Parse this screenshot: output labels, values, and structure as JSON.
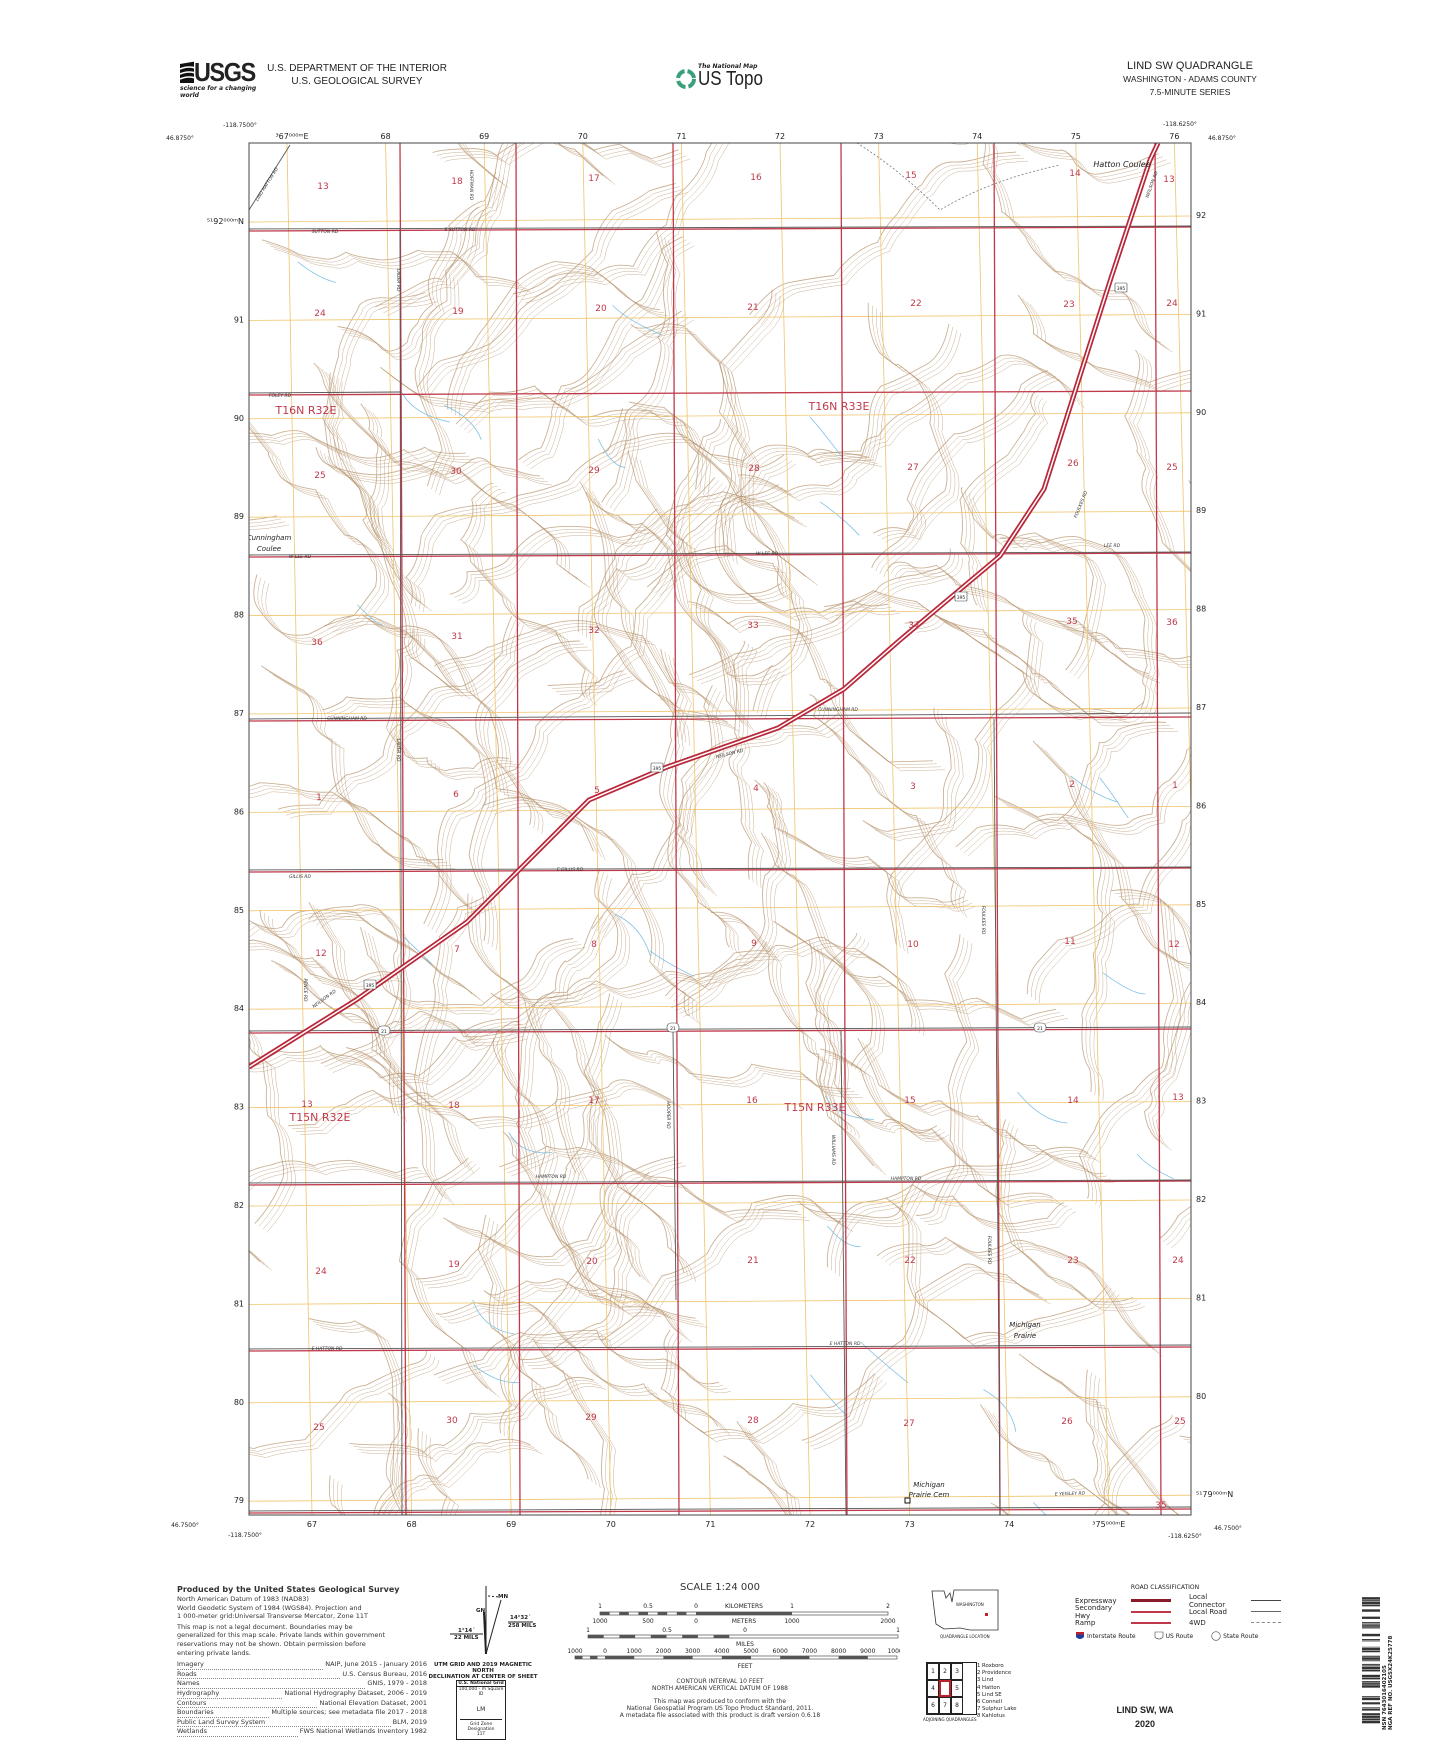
{
  "header": {
    "agency_logo": "USGS",
    "agency_tagline": "science for a changing world",
    "department": "U.S. DEPARTMENT OF THE INTERIOR",
    "survey": "U.S. GEOLOGICAL SURVEY",
    "program_small": "The National Map",
    "program": "US Topo",
    "quad_title": "LIND SW QUADRANGLE",
    "state_county": "WASHINGTON - ADAMS COUNTY",
    "series": "7.5-MINUTE SERIES"
  },
  "map": {
    "corners": {
      "nw_lon": "-118.7500°",
      "nw_lat": "46.8750°",
      "ne_lon": "-118.6250°",
      "ne_lat": "46.8750°",
      "sw_lon": "-118.7500°",
      "sw_lat": "46.7500°",
      "se_lon": "-118.6250°",
      "se_lat": "46.7500°"
    },
    "eastings_top": [
      "³67⁰⁰⁰ᵐE",
      "68",
      "69",
      "70",
      "71",
      "72",
      "73",
      "74",
      "75",
      "76"
    ],
    "eastings_bottom": [
      "67",
      "68",
      "69",
      "70",
      "71",
      "72",
      "73",
      "74",
      "³75⁰⁰⁰ᵐE"
    ],
    "northings_left": [
      "⁵¹92⁰⁰⁰ᵐN",
      "91",
      "90",
      "89",
      "88",
      "87",
      "86",
      "85",
      "84",
      "83",
      "82",
      "81",
      "80",
      "79"
    ],
    "northings_right": [
      "92",
      "91",
      "90",
      "89",
      "88",
      "87",
      "86",
      "85",
      "84",
      "83",
      "82",
      "81",
      "80",
      "⁵¹79⁰⁰⁰ᵐN"
    ],
    "townships": [
      "T16N R32E",
      "T16N R33E",
      "T15N R32E",
      "T15N R33E"
    ],
    "sections": [
      "13",
      "18",
      "17",
      "16",
      "15",
      "14",
      "13",
      "24",
      "19",
      "20",
      "21",
      "22",
      "23",
      "24",
      "25",
      "30",
      "29",
      "28",
      "27",
      "26",
      "25",
      "36",
      "31",
      "32",
      "33",
      "34",
      "35",
      "36",
      "1",
      "6",
      "5",
      "4",
      "3",
      "2",
      "1",
      "12",
      "7",
      "8",
      "9",
      "10",
      "11",
      "12",
      "13",
      "18",
      "17",
      "16",
      "15",
      "14",
      "13",
      "24",
      "19",
      "20",
      "21",
      "22",
      "23",
      "24",
      "25",
      "30",
      "29",
      "28",
      "27",
      "26",
      "25",
      "35"
    ],
    "places": [
      "Hatton Coulee",
      "Cunningham",
      "Coulee",
      "Michigan",
      "Prairie",
      "Michigan",
      "Prairie Cem"
    ],
    "roads": [
      "SUTTON RD",
      "E SUTTON RD",
      "FOLEY RD",
      "W LEE RD",
      "W LEE RD",
      "LEE RD",
      "CUNNINGHAM RD",
      "CUNNINGHAM RD",
      "NEILSON RD",
      "NEILSON RD",
      "NEILSON RD",
      "GILLIS RD",
      "E GILLIS RD",
      "HAMPTON RD",
      "HAMPTON RD",
      "E HATTON RD",
      "E HATTON RD",
      "E YEISLEY RD",
      "LAUER RD",
      "LAUER RD",
      "HOFFMAN RD",
      "FOULKES RD",
      "FOULKES RD",
      "FOULKES RD",
      "WILLIAMS RD",
      "HOOPER RD",
      "LIND HATTON RD",
      "PENCE RD"
    ],
    "route_shields": [
      "395",
      "395",
      "395",
      "395",
      "21",
      "21",
      "21"
    ],
    "colors": {
      "section_line": "#c0394b",
      "grid": "#f0c46a",
      "contour": "#b5916a",
      "water": "#7fc1e6",
      "highway": "#b8283a",
      "township_label": "#c0394b"
    }
  },
  "footer": {
    "produced_by": "Produced by the United States Geological Survey",
    "datum_lines": [
      "North American Datum of 1983 (NAD83)",
      "World Geodetic System of 1984 (WGS84). Projection and",
      "1 000-meter grid:Universal Transverse Mercator, Zone 11T"
    ],
    "legal_lines": [
      "This map is not a legal document. Boundaries may be",
      "generalized for this map scale. Private lands within government",
      "reservations may not be shown. Obtain permission before",
      "entering private lands."
    ],
    "credits": [
      {
        "k": "Imagery",
        "v": "NAIP, June 2015 - January 2016"
      },
      {
        "k": "Roads",
        "v": "U.S. Census Bureau, 2016"
      },
      {
        "k": "Names",
        "v": "GNIS, 1979 - 2018"
      },
      {
        "k": "Hydrography",
        "v": "National Hydrography Dataset, 2006 - 2019"
      },
      {
        "k": "Contours",
        "v": "National Elevation Dataset, 2001"
      },
      {
        "k": "Boundaries",
        "v": "Multiple sources; see metadata file 2017 - 2018"
      },
      {
        "k": "Public Land Survey System",
        "v": "BLM, 2019"
      },
      {
        "k": "Wetlands",
        "v": "FWS National Wetlands Inventory 1982"
      }
    ],
    "declination": {
      "mn": "MN",
      "gn": "GN",
      "grid_angle": "1°14´",
      "grid_mils": "22 MILS",
      "mag_angle": "14°32´",
      "mag_mils": "258 MILS",
      "caption1": "UTM GRID AND 2019 MAGNETIC NORTH",
      "caption2": "DECLINATION AT CENTER OF SHEET"
    },
    "usng": {
      "title": "U.S. National Grid",
      "subtitle": "100,000 - m Square ID",
      "square": "LM",
      "zone_label": "Grid Zone Designation",
      "zone": "11T"
    },
    "scale": {
      "title": "SCALE 1:24 000",
      "km_ticks": [
        "1",
        "0.5",
        "0",
        "1",
        "2"
      ],
      "km_label": "KILOMETERS",
      "m_ticks": [
        "1000",
        "500",
        "0",
        "1000",
        "2000"
      ],
      "m_label": "METERS",
      "mi_ticks": [
        "1",
        "0.5",
        "0",
        "1"
      ],
      "mi_label": "MILES",
      "ft_ticks": [
        "1000",
        "0",
        "1000",
        "2000",
        "3000",
        "4000",
        "5000",
        "6000",
        "7000",
        "8000",
        "9000",
        "10000"
      ],
      "ft_label": "FEET"
    },
    "contour": [
      "CONTOUR INTERVAL 10 FEET",
      "NORTH AMERICAN VERTICAL DATUM OF 1988"
    ],
    "conform": [
      "This map was produced to conform with the",
      "National Geospatial Program US Topo Product Standard, 2011.",
      "A metadata file associated with this product is draft version 0.6.18"
    ],
    "location": {
      "state": "WASHINGTON",
      "caption": "QUADRANGLE LOCATION"
    },
    "adjoining": {
      "cells": [
        "1",
        "2",
        "3",
        "4",
        "",
        "5",
        "6",
        "7",
        "8"
      ],
      "names": [
        "1 Roxboro",
        "2 Providence",
        "3 Lind",
        "4 Hatton",
        "5 Lind SE",
        "6 Connell",
        "7 Sulphur Lake",
        "8 Kahlotus"
      ],
      "caption": "ADJOINING QUADRANGLES"
    },
    "road_classification": {
      "title": "ROAD CLASSIFICATION",
      "left": [
        "Expressway",
        "Secondary Hwy",
        "Ramp"
      ],
      "right": [
        "Local Connector",
        "Local Road",
        "4WD"
      ],
      "shields": [
        "Interstate Route",
        "US Route",
        "State Route"
      ]
    },
    "sheet_name": "LIND SW,  WA",
    "year": "2020",
    "barcode": {
      "nsn": "NSN 7643016402105",
      "nga": "NGA REF NO. USGSX24K25778"
    }
  }
}
